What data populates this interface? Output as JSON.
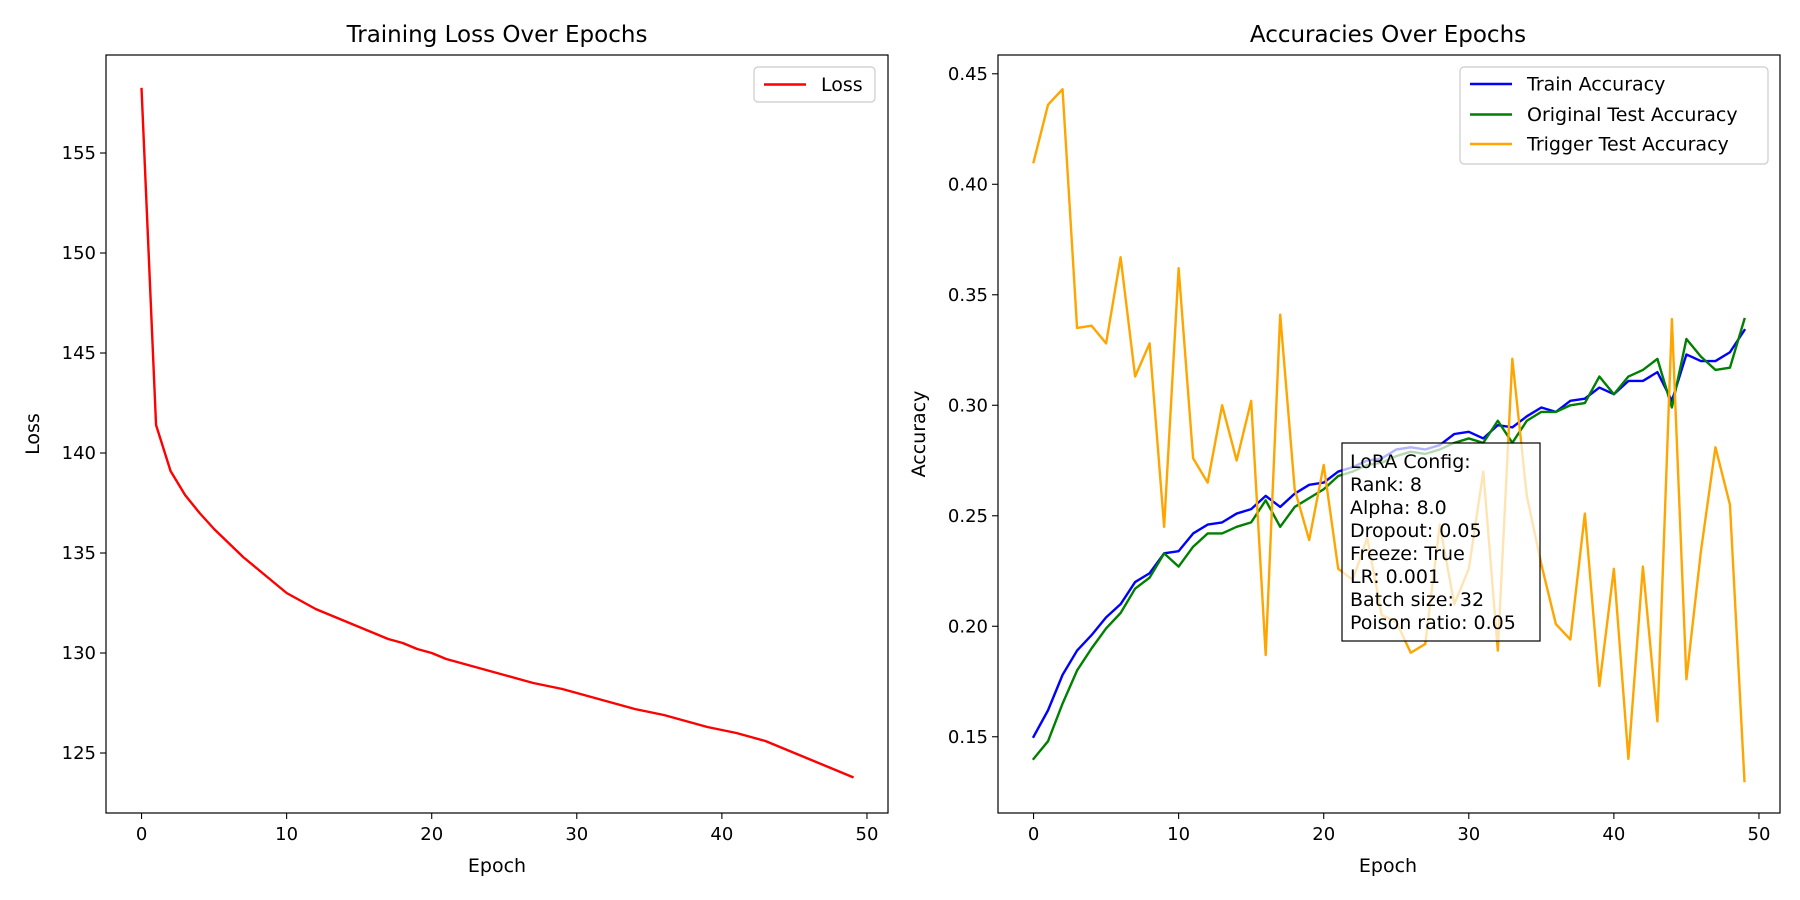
{
  "chart_data": [
    {
      "type": "line",
      "title": "Training Loss Over Epochs",
      "xlabel": "Epoch",
      "ylabel": "Loss",
      "xlim": [
        -2.45,
        51.45
      ],
      "ylim": [
        122.0,
        159.9
      ],
      "xticks": [
        0,
        10,
        20,
        30,
        40,
        50
      ],
      "yticks": [
        125,
        130,
        135,
        140,
        145,
        150,
        155
      ],
      "grid": false,
      "legend_position": "top-right",
      "x": [
        0,
        1,
        2,
        3,
        4,
        5,
        6,
        7,
        8,
        9,
        10,
        11,
        12,
        13,
        14,
        15,
        16,
        17,
        18,
        19,
        20,
        21,
        22,
        23,
        24,
        25,
        26,
        27,
        28,
        29,
        30,
        31,
        32,
        33,
        34,
        35,
        36,
        37,
        38,
        39,
        40,
        41,
        42,
        43,
        44,
        45,
        46,
        47,
        48,
        49
      ],
      "series": [
        {
          "name": "Loss",
          "color": "#ff0000",
          "values": [
            158.2,
            141.4,
            139.1,
            137.9,
            137.0,
            136.2,
            135.5,
            134.8,
            134.2,
            133.6,
            133.0,
            132.6,
            132.2,
            131.9,
            131.6,
            131.3,
            131.0,
            130.7,
            130.5,
            130.2,
            130.0,
            129.7,
            129.5,
            129.3,
            129.1,
            128.9,
            128.7,
            128.5,
            128.35,
            128.2,
            128.0,
            127.8,
            127.6,
            127.4,
            127.2,
            127.05,
            126.9,
            126.7,
            126.5,
            126.3,
            126.15,
            126.0,
            125.8,
            125.6,
            125.3,
            125.0,
            124.7,
            124.4,
            124.1,
            123.8
          ]
        }
      ]
    },
    {
      "type": "line",
      "title": "Accuracies Over Epochs",
      "xlabel": "Epoch",
      "ylabel": "Accuracy",
      "xlim": [
        -2.45,
        51.45
      ],
      "ylim": [
        0.1155,
        0.4585
      ],
      "xticks": [
        0,
        10,
        20,
        30,
        40,
        50
      ],
      "yticks": [
        0.15,
        0.2,
        0.25,
        0.3,
        0.35,
        0.4,
        0.45
      ],
      "grid": false,
      "legend_position": "top-right",
      "x": [
        0,
        1,
        2,
        3,
        4,
        5,
        6,
        7,
        8,
        9,
        10,
        11,
        12,
        13,
        14,
        15,
        16,
        17,
        18,
        19,
        20,
        21,
        22,
        23,
        24,
        25,
        26,
        27,
        28,
        29,
        30,
        31,
        32,
        33,
        34,
        35,
        36,
        37,
        38,
        39,
        40,
        41,
        42,
        43,
        44,
        45,
        46,
        47,
        48,
        49
      ],
      "series": [
        {
          "name": "Train Accuracy",
          "color": "#0000ff",
          "values": [
            0.15,
            0.162,
            0.178,
            0.189,
            0.196,
            0.204,
            0.21,
            0.22,
            0.224,
            0.233,
            0.234,
            0.242,
            0.246,
            0.247,
            0.251,
            0.253,
            0.259,
            0.254,
            0.26,
            0.264,
            0.265,
            0.27,
            0.272,
            0.275,
            0.276,
            0.28,
            0.281,
            0.28,
            0.282,
            0.287,
            0.288,
            0.285,
            0.291,
            0.29,
            0.295,
            0.299,
            0.297,
            0.302,
            0.303,
            0.308,
            0.305,
            0.311,
            0.311,
            0.315,
            0.302,
            0.323,
            0.32,
            0.32,
            0.324,
            0.334
          ]
        },
        {
          "name": "Original Test Accuracy",
          "color": "#008000",
          "values": [
            0.14,
            0.148,
            0.165,
            0.18,
            0.19,
            0.199,
            0.206,
            0.217,
            0.222,
            0.233,
            0.227,
            0.236,
            0.242,
            0.242,
            0.245,
            0.247,
            0.257,
            0.245,
            0.254,
            0.258,
            0.262,
            0.268,
            0.27,
            0.273,
            0.274,
            0.277,
            0.279,
            0.278,
            0.28,
            0.283,
            0.285,
            0.283,
            0.293,
            0.283,
            0.293,
            0.297,
            0.297,
            0.3,
            0.301,
            0.313,
            0.305,
            0.313,
            0.316,
            0.321,
            0.299,
            0.33,
            0.322,
            0.316,
            0.317,
            0.339
          ]
        },
        {
          "name": "Trigger Test Accuracy",
          "color": "#ffa500",
          "values": [
            0.41,
            0.436,
            0.443,
            0.335,
            0.336,
            0.328,
            0.367,
            0.313,
            0.328,
            0.245,
            0.362,
            0.276,
            0.265,
            0.3,
            0.275,
            0.302,
            0.187,
            0.341,
            0.262,
            0.239,
            0.273,
            0.226,
            0.221,
            0.24,
            0.205,
            0.202,
            0.188,
            0.192,
            0.246,
            0.21,
            0.226,
            0.27,
            0.189,
            0.321,
            0.259,
            0.228,
            0.201,
            0.194,
            0.251,
            0.173,
            0.226,
            0.14,
            0.227,
            0.157,
            0.339,
            0.176,
            0.234,
            0.281,
            0.255,
            0.13
          ]
        }
      ],
      "annotation": {
        "lines": [
          "LoRA Config:",
          "Rank: 8",
          "Alpha: 8.0",
          "Dropout: 0.05",
          "Freeze: True",
          "LR: 0.001",
          "Batch size: 32",
          "Poison ratio: 0.05"
        ]
      }
    }
  ]
}
